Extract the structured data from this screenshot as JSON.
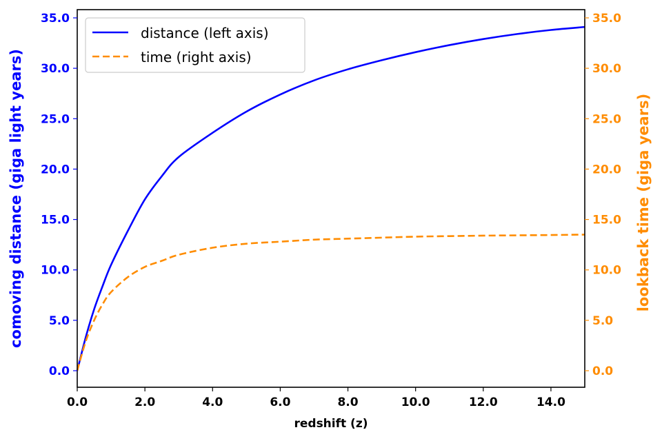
{
  "chart_data": {
    "type": "line",
    "title": "",
    "xlabel": "redshift (z)",
    "ylabel_left": "comoving distance (giga light years)",
    "ylabel_right": "lookback time (giga years)",
    "xlim": [
      0,
      15
    ],
    "ylim_left": [
      -1.7,
      35.8
    ],
    "ylim_right": [
      -1.7,
      35.8
    ],
    "x_ticks": [
      "0.0",
      "2.0",
      "4.0",
      "6.0",
      "8.0",
      "10.0",
      "12.0",
      "14.0"
    ],
    "y_ticks_left": [
      "0.0",
      "5.0",
      "10.0",
      "15.0",
      "20.0",
      "25.0",
      "30.0",
      "35.0"
    ],
    "y_ticks_right": [
      "0.0",
      "5.0",
      "10.0",
      "15.0",
      "20.0",
      "25.0",
      "30.0",
      "35.0"
    ],
    "grid": false,
    "legend_position": "upper left",
    "x": [
      0,
      0.25,
      0.5,
      0.75,
      1.0,
      1.5,
      2.0,
      2.5,
      3.0,
      4.0,
      5.0,
      6.0,
      7.0,
      8.0,
      9.0,
      10.0,
      11.0,
      12.0,
      13.0,
      14.0,
      15.0
    ],
    "series": [
      {
        "name": "distance (left axis)",
        "axis": "left",
        "color": "#0000ff",
        "style": "solid",
        "values": [
          0,
          3.3,
          6.1,
          8.4,
          10.5,
          13.9,
          17.0,
          19.3,
          21.2,
          23.6,
          25.7,
          27.4,
          28.8,
          29.9,
          30.8,
          31.6,
          32.3,
          32.9,
          33.4,
          33.8,
          34.1
        ]
      },
      {
        "name": "time (right axis)",
        "axis": "right",
        "color": "#ff8c00",
        "style": "dashed",
        "values": [
          0,
          2.9,
          5.0,
          6.6,
          7.8,
          9.3,
          10.3,
          10.9,
          11.5,
          12.2,
          12.6,
          12.8,
          13.0,
          13.1,
          13.2,
          13.3,
          13.35,
          13.4,
          13.43,
          13.46,
          13.5
        ]
      }
    ]
  },
  "colors": {
    "left_axis": "#0000ff",
    "right_axis": "#ff8c00",
    "frame": "#000000"
  }
}
